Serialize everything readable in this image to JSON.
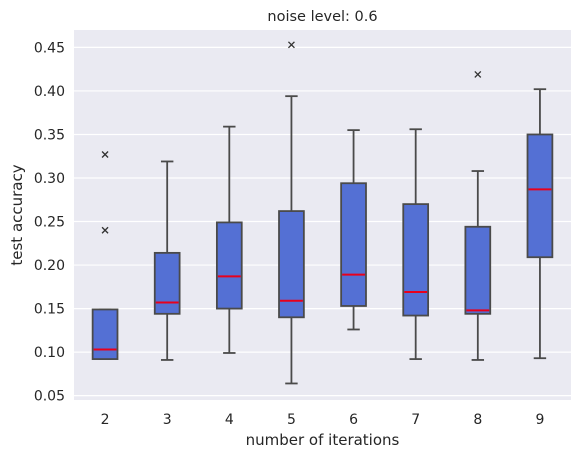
{
  "chart_data": {
    "type": "box",
    "title": "noise level: 0.6",
    "xlabel": "number of iterations",
    "ylabel": "test accuracy",
    "ylim": [
      0.045,
      0.47
    ],
    "yticks": [
      "0.05",
      "0.10",
      "0.15",
      "0.20",
      "0.25",
      "0.30",
      "0.35",
      "0.40",
      "0.45"
    ],
    "grid": true,
    "box_color": "#5470d4",
    "median_color": "#e8001c",
    "background_color": "#eaeaf2",
    "categories": [
      "2",
      "3",
      "4",
      "5",
      "6",
      "7",
      "8",
      "9"
    ],
    "boxes": [
      {
        "x": "2",
        "whislo": 0.092,
        "q1": 0.092,
        "med": 0.103,
        "q3": 0.149,
        "whishi": 0.149,
        "fliers": [
          0.24,
          0.327
        ]
      },
      {
        "x": "3",
        "whislo": 0.091,
        "q1": 0.144,
        "med": 0.157,
        "q3": 0.214,
        "whishi": 0.319,
        "fliers": []
      },
      {
        "x": "4",
        "whislo": 0.099,
        "q1": 0.15,
        "med": 0.187,
        "q3": 0.249,
        "whishi": 0.359,
        "fliers": []
      },
      {
        "x": "5",
        "whislo": 0.064,
        "q1": 0.14,
        "med": 0.159,
        "q3": 0.262,
        "whishi": 0.394,
        "fliers": [
          0.453
        ]
      },
      {
        "x": "6",
        "whislo": 0.126,
        "q1": 0.153,
        "med": 0.189,
        "q3": 0.294,
        "whishi": 0.355,
        "fliers": []
      },
      {
        "x": "7",
        "whislo": 0.092,
        "q1": 0.142,
        "med": 0.169,
        "q3": 0.27,
        "whishi": 0.356,
        "fliers": []
      },
      {
        "x": "8",
        "whislo": 0.091,
        "q1": 0.144,
        "med": 0.148,
        "q3": 0.244,
        "whishi": 0.308,
        "fliers": [
          0.419
        ]
      },
      {
        "x": "9",
        "whislo": 0.093,
        "q1": 0.209,
        "med": 0.287,
        "q3": 0.35,
        "whishi": 0.402,
        "fliers": []
      }
    ]
  }
}
